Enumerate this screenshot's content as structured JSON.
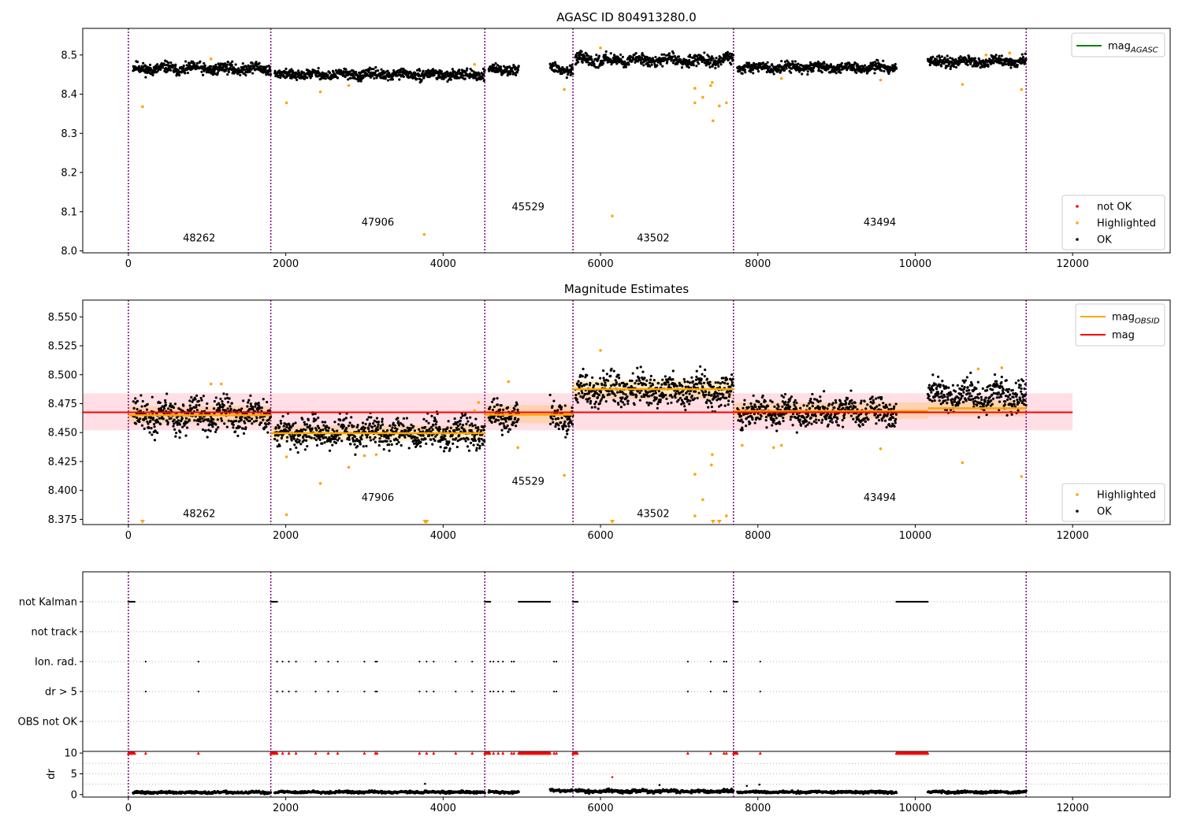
{
  "figure": {
    "title": "AGASC ID 804913280.0"
  },
  "colors": {
    "ok": "#000000",
    "highlighted": "#ffa500",
    "not_ok": "#ff0000",
    "mag_agasc": "#008000",
    "mag_obsid": "#ffa500",
    "mag": "#ff0000",
    "obsid_boundary": "#800080",
    "band": "#ffc0cb"
  },
  "chart_data": [
    {
      "id": "mag-agasc",
      "type": "scatter",
      "title": "",
      "xlim": [
        -580,
        13240
      ],
      "ylim": [
        7.995,
        8.568
      ],
      "x_ticks": [
        0,
        2000,
        4000,
        6000,
        8000,
        10000,
        12000
      ],
      "x_tick_labels": [
        "0",
        "2000",
        "4000",
        "6000",
        "8000",
        "10000",
        "12000"
      ],
      "y_ticks": [
        8.0,
        8.1,
        8.2,
        8.3,
        8.4,
        8.5
      ],
      "y_tick_labels": [
        "8.0",
        "8.1",
        "8.2",
        "8.3",
        "8.4",
        "8.5"
      ],
      "obsid_boundaries": [
        0,
        1810,
        4530,
        5650,
        7690,
        11410
      ],
      "obsids": [
        {
          "label": "48262",
          "x": 900,
          "y": 8.024
        },
        {
          "label": "47906",
          "x": 3170,
          "y": 8.064
        },
        {
          "label": "45529",
          "x": 5080,
          "y": 8.104
        },
        {
          "label": "43502",
          "x": 6670,
          "y": 8.024
        },
        {
          "label": "43494",
          "x": 9550,
          "y": 8.064
        }
      ],
      "ok_segments": [
        {
          "x0": 60,
          "x1": 1810,
          "mean": 8.465,
          "spread": 0.013
        },
        {
          "x0": 1860,
          "x1": 4530,
          "mean": 8.45,
          "spread": 0.011
        },
        {
          "x0": 4580,
          "x1": 4960,
          "mean": 8.463,
          "spread": 0.012
        },
        {
          "x0": 5360,
          "x1": 5650,
          "mean": 8.464,
          "spread": 0.012
        },
        {
          "x0": 5680,
          "x1": 7690,
          "mean": 8.487,
          "spread": 0.013
        },
        {
          "x0": 7740,
          "x1": 9760,
          "mean": 8.468,
          "spread": 0.011
        },
        {
          "x0": 10160,
          "x1": 11410,
          "mean": 8.483,
          "spread": 0.012
        }
      ],
      "highlighted_points": [
        [
          180,
          8.368
        ],
        [
          2010,
          8.378
        ],
        [
          2440,
          8.406
        ],
        [
          3760,
          8.042
        ],
        [
          5540,
          8.412
        ],
        [
          6150,
          8.089
        ],
        [
          7200,
          8.415
        ],
        [
          7200,
          8.378
        ],
        [
          7300,
          8.392
        ],
        [
          7400,
          8.422
        ],
        [
          7420,
          8.43
        ],
        [
          7430,
          8.332
        ],
        [
          7510,
          8.37
        ],
        [
          7600,
          8.378
        ],
        [
          8300,
          8.44
        ],
        [
          9560,
          8.436
        ],
        [
          10600,
          8.425
        ],
        [
          11350,
          8.412
        ],
        [
          1050,
          8.49
        ],
        [
          2800,
          8.422
        ],
        [
          4400,
          8.476
        ],
        [
          6000,
          8.518
        ],
        [
          10900,
          8.5
        ],
        [
          11200,
          8.505
        ]
      ],
      "legend_lines": [
        {
          "name": "mag",
          "subscript": "AGASC",
          "color": "#008000"
        }
      ],
      "legend_points": [
        {
          "name": "not OK",
          "color": "#ff0000"
        },
        {
          "name": "Highlighted",
          "color": "#ffa500"
        },
        {
          "name": "OK",
          "color": "#000000"
        }
      ]
    },
    {
      "id": "mag-estimates",
      "type": "scatter",
      "title": "Magnitude Estimates",
      "xlim": [
        -580,
        13240
      ],
      "ylim": [
        8.3705,
        8.5645
      ],
      "x_ticks": [
        0,
        2000,
        4000,
        6000,
        8000,
        10000,
        12000
      ],
      "x_tick_labels": [
        "0",
        "2000",
        "4000",
        "6000",
        "8000",
        "10000",
        "12000"
      ],
      "y_ticks": [
        8.375,
        8.4,
        8.425,
        8.45,
        8.475,
        8.5,
        8.525,
        8.55
      ],
      "y_tick_labels": [
        "8.375",
        "8.400",
        "8.425",
        "8.450",
        "8.475",
        "8.500",
        "8.525",
        "8.550"
      ],
      "obsid_boundaries": [
        0,
        1810,
        4530,
        5650,
        7690,
        11410
      ],
      "obsids": [
        {
          "label": "48262",
          "x": 900,
          "y": 8.377
        },
        {
          "label": "47906",
          "x": 3170,
          "y": 8.391
        },
        {
          "label": "45529",
          "x": 5080,
          "y": 8.405
        },
        {
          "label": "43502",
          "x": 6670,
          "y": 8.377
        },
        {
          "label": "43494",
          "x": 9550,
          "y": 8.391
        }
      ],
      "mag": {
        "value": 8.4675,
        "band": [
          8.452,
          8.484
        ],
        "x": [
          -580,
          12000
        ]
      },
      "mag_obsid": [
        {
          "x0": 0,
          "x1": 1810,
          "value": 8.465,
          "band": [
            8.458,
            8.473
          ]
        },
        {
          "x0": 1810,
          "x1": 4530,
          "value": 8.4495,
          "band": [
            8.443,
            8.456
          ]
        },
        {
          "x0": 4530,
          "x1": 5650,
          "value": 8.4655,
          "band": [
            8.458,
            8.474
          ]
        },
        {
          "x0": 5650,
          "x1": 7690,
          "value": 8.4875,
          "band": [
            8.479,
            8.495
          ]
        },
        {
          "x0": 7690,
          "x1": 10160,
          "value": 8.4685,
          "band": [
            8.462,
            8.476
          ]
        },
        {
          "x0": 10160,
          "x1": 11410,
          "value": 8.471,
          "band": [
            8.464,
            8.478
          ]
        }
      ],
      "ok_segments": [
        {
          "x0": 60,
          "x1": 1810,
          "mean": 8.465,
          "spread": 0.013
        },
        {
          "x0": 1860,
          "x1": 4530,
          "mean": 8.45,
          "spread": 0.011
        },
        {
          "x0": 4580,
          "x1": 4960,
          "mean": 8.463,
          "spread": 0.012
        },
        {
          "x0": 5360,
          "x1": 5650,
          "mean": 8.464,
          "spread": 0.012
        },
        {
          "x0": 5680,
          "x1": 7690,
          "mean": 8.487,
          "spread": 0.013
        },
        {
          "x0": 7740,
          "x1": 9760,
          "mean": 8.468,
          "spread": 0.011
        },
        {
          "x0": 10160,
          "x1": 11410,
          "mean": 8.483,
          "spread": 0.012
        }
      ],
      "highlighted_points": [
        [
          1050,
          8.492
        ],
        [
          1180,
          8.492
        ],
        [
          2010,
          8.429
        ],
        [
          2010,
          8.379
        ],
        [
          2440,
          8.406
        ],
        [
          2800,
          8.42
        ],
        [
          3000,
          8.43
        ],
        [
          3150,
          8.431
        ],
        [
          4400,
          8.469
        ],
        [
          4450,
          8.476
        ],
        [
          4830,
          8.494
        ],
        [
          4950,
          8.437
        ],
        [
          5540,
          8.413
        ],
        [
          6000,
          8.521
        ],
        [
          7200,
          8.414
        ],
        [
          7200,
          8.378
        ],
        [
          7300,
          8.392
        ],
        [
          7410,
          8.422
        ],
        [
          7420,
          8.431
        ],
        [
          7600,
          8.378
        ],
        [
          7800,
          8.439
        ],
        [
          8200,
          8.437
        ],
        [
          8300,
          8.439
        ],
        [
          9560,
          8.436
        ],
        [
          10600,
          8.424
        ],
        [
          10800,
          8.505
        ],
        [
          11350,
          8.412
        ],
        [
          11100,
          8.506
        ]
      ],
      "clipped_points": [
        180,
        3770,
        3790,
        6150,
        7430,
        7510
      ],
      "legend_lines": [
        {
          "name": "mag",
          "subscript": "OBSID",
          "color": "#ffa500"
        },
        {
          "name": "mag",
          "subscript": "",
          "color": "#ff0000"
        }
      ],
      "legend_points": [
        {
          "name": "Highlighted",
          "color": "#ffa500"
        },
        {
          "name": "OK",
          "color": "#000000"
        }
      ]
    },
    {
      "id": "flags",
      "type": "scatter",
      "title": "",
      "xlim": [
        -580,
        13240
      ],
      "rows": [
        "not Kalman",
        "not track",
        "Ion. rad.",
        "dr > 5",
        "OBS not OK"
      ],
      "obsid_boundaries": [
        0,
        1810,
        4530,
        5650,
        7690,
        11410
      ],
      "not_kalman_ranges": [
        [
          0,
          80
        ],
        [
          1810,
          1890
        ],
        [
          4530,
          4600
        ],
        [
          4960,
          5360
        ],
        [
          5650,
          5710
        ],
        [
          7690,
          7740
        ],
        [
          9760,
          10160
        ]
      ],
      "event_x": [
        220,
        890,
        1890,
        1960,
        2040,
        2130,
        2380,
        2540,
        2660,
        3000,
        3140,
        3160,
        3700,
        3790,
        3880,
        4160,
        4370,
        4600,
        4640,
        4700,
        4760,
        4870,
        4900,
        5410,
        5440,
        7110,
        7400,
        7570,
        7600,
        8030
      ]
    },
    {
      "id": "dr",
      "type": "scatter",
      "title": "",
      "ylabel": "dr",
      "xlim": [
        -580,
        13240
      ],
      "ylim": [
        -0.6,
        10.4
      ],
      "x_ticks": [
        0,
        2000,
        4000,
        6000,
        8000,
        10000,
        12000
      ],
      "x_tick_labels": [
        "0",
        "2000",
        "4000",
        "6000",
        "8000",
        "10000",
        "12000"
      ],
      "y_ticks": [
        0,
        5,
        10
      ],
      "y_tick_labels": [
        "0",
        "5",
        "10"
      ],
      "y_grid": [
        2.5,
        5,
        7.5
      ],
      "obsid_boundaries": [
        0,
        1810,
        4530,
        5650,
        7690,
        11410
      ],
      "capped_ranges": [
        [
          0,
          80
        ],
        [
          1810,
          1890
        ],
        [
          4530,
          4600
        ],
        [
          4960,
          5360
        ],
        [
          5650,
          5710
        ],
        [
          7690,
          7740
        ],
        [
          9760,
          10160
        ]
      ],
      "capped_value": 10,
      "capped_x": [
        220,
        890,
        1960,
        2040,
        2130,
        2380,
        2540,
        2660,
        3000,
        3140,
        3160,
        3700,
        3790,
        3880,
        4160,
        4370,
        4640,
        4700,
        4760,
        4870,
        4900,
        5410,
        5440,
        7110,
        7400,
        7570,
        7600,
        8030
      ],
      "outlier_points": [
        [
          6150,
          4.2
        ],
        [
          3770,
          2.6
        ],
        [
          6750,
          2.3
        ],
        [
          7860,
          2.1
        ],
        [
          8020,
          2.4
        ]
      ],
      "ok_segments": [
        {
          "x0": 60,
          "x1": 1810,
          "mean": 0.5,
          "spread": 0.25
        },
        {
          "x0": 1860,
          "x1": 4530,
          "mean": 0.6,
          "spread": 0.25
        },
        {
          "x0": 4580,
          "x1": 4960,
          "mean": 0.6,
          "spread": 0.25
        },
        {
          "x0": 5360,
          "x1": 5650,
          "mean": 1.0,
          "spread": 0.3
        },
        {
          "x0": 5680,
          "x1": 7690,
          "mean": 0.8,
          "spread": 0.35
        },
        {
          "x0": 7740,
          "x1": 9760,
          "mean": 0.6,
          "spread": 0.25
        },
        {
          "x0": 10160,
          "x1": 11410,
          "mean": 0.6,
          "spread": 0.25
        }
      ]
    }
  ]
}
